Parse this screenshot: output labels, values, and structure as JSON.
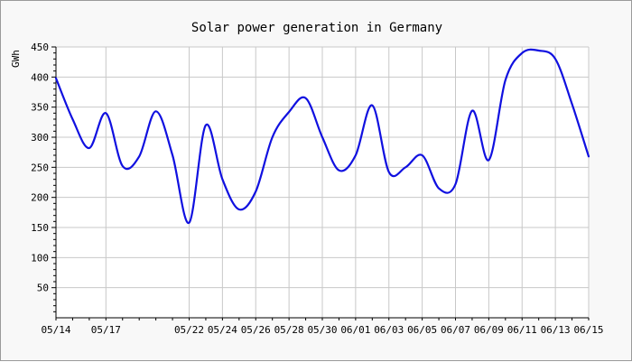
{
  "colors": {
    "background": "#f8f8f8",
    "plot_background": "#ffffff",
    "grid": "#c8c8c8",
    "axis": "#000000",
    "line": "#1010e0"
  },
  "chart_data": {
    "type": "line",
    "title": "Solar power generation in Germany",
    "xlabel": "",
    "ylabel": "GWh",
    "ylim": [
      0,
      450
    ],
    "yticks": [
      50,
      100,
      150,
      200,
      250,
      300,
      350,
      400,
      450
    ],
    "xlim": [
      "05/14",
      "06/15"
    ],
    "xtick_labels": [
      "05/14",
      "05/17",
      "05/22",
      "05/24",
      "05/26",
      "05/28",
      "05/30",
      "06/01",
      "06/03",
      "06/05",
      "06/07",
      "06/09",
      "06/11",
      "06/13",
      "06/15"
    ],
    "grid": true,
    "legend": "none",
    "series": [
      {
        "points": [
          {
            "x": "05/14",
            "y": 398
          },
          {
            "x": "05/15",
            "y": 330
          },
          {
            "x": "05/16",
            "y": 282
          },
          {
            "x": "05/17",
            "y": 340
          },
          {
            "x": "05/18",
            "y": 252
          },
          {
            "x": "05/19",
            "y": 268
          },
          {
            "x": "05/20",
            "y": 343
          },
          {
            "x": "05/21",
            "y": 270
          },
          {
            "x": "05/22",
            "y": 158
          },
          {
            "x": "05/23",
            "y": 320
          },
          {
            "x": "05/24",
            "y": 230
          },
          {
            "x": "05/25",
            "y": 180
          },
          {
            "x": "05/26",
            "y": 210
          },
          {
            "x": "05/27",
            "y": 300
          },
          {
            "x": "05/28",
            "y": 342
          },
          {
            "x": "05/29",
            "y": 365
          },
          {
            "x": "05/30",
            "y": 300
          },
          {
            "x": "05/31",
            "y": 245
          },
          {
            "x": "06/01",
            "y": 270
          },
          {
            "x": "06/02",
            "y": 353
          },
          {
            "x": "06/03",
            "y": 242
          },
          {
            "x": "06/04",
            "y": 250
          },
          {
            "x": "06/05",
            "y": 270
          },
          {
            "x": "06/06",
            "y": 215
          },
          {
            "x": "06/07",
            "y": 222
          },
          {
            "x": "06/08",
            "y": 344
          },
          {
            "x": "06/09",
            "y": 262
          },
          {
            "x": "06/10",
            "y": 395
          },
          {
            "x": "06/11",
            "y": 440
          },
          {
            "x": "06/12",
            "y": 444
          },
          {
            "x": "06/13",
            "y": 430
          },
          {
            "x": "06/14",
            "y": 355
          },
          {
            "x": "06/15",
            "y": 268
          }
        ]
      }
    ]
  }
}
